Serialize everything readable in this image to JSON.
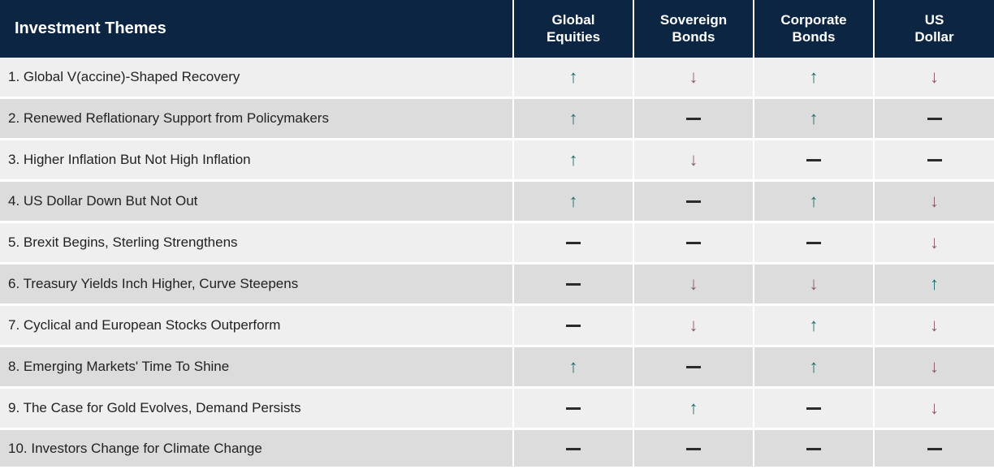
{
  "table": {
    "type": "table",
    "header_bg": "#0c2542",
    "header_text_color": "#ffffff",
    "row_bg_even": "#efefef",
    "row_bg_odd": "#dcdcdc",
    "cell_border_color": "#ffffff",
    "text_color": "#222222",
    "up_color": "#1d6e6e",
    "down_color": "#8a5a66",
    "flat_color": "#2b2b2b",
    "title_fontsize": 20,
    "header_fontsize": 17,
    "body_fontsize": 17,
    "arrow_fontsize": 22,
    "themes_col_width": 632,
    "asset_col_width": 148,
    "columns": [
      "Investment Themes",
      "Global Equities",
      "Sovereign Bonds",
      "Corporate Bonds",
      "US Dollar"
    ],
    "rows": [
      {
        "label": "1. Global V(accine)-Shaped Recovery",
        "values": [
          "up",
          "down",
          "up",
          "down"
        ]
      },
      {
        "label": "2. Renewed Reflationary Support from Policymakers",
        "values": [
          "up",
          "flat",
          "up",
          "flat"
        ]
      },
      {
        "label": "3. Higher Inflation But Not High Inflation",
        "values": [
          "up",
          "down",
          "flat",
          "flat"
        ]
      },
      {
        "label": "4. US Dollar Down But Not Out",
        "values": [
          "up",
          "flat",
          "up",
          "down"
        ]
      },
      {
        "label": "5. Brexit Begins, Sterling Strengthens",
        "values": [
          "flat",
          "flat",
          "flat",
          "down"
        ]
      },
      {
        "label": "6. Treasury Yields Inch Higher, Curve Steepens",
        "values": [
          "flat",
          "down",
          "down",
          "up"
        ]
      },
      {
        "label": "7. Cyclical and European Stocks Outperform",
        "values": [
          "flat",
          "down",
          "up",
          "down"
        ]
      },
      {
        "label": "8. Emerging  Markets'  Time To Shine",
        "values": [
          "up",
          "flat",
          "up",
          "down"
        ]
      },
      {
        "label": "9. The Case for Gold Evolves, Demand Persists",
        "values": [
          "flat",
          "up",
          "flat",
          "down"
        ]
      },
      {
        "label": "10. Investors Change for Climate Change",
        "values": [
          "flat",
          "flat",
          "flat",
          "flat"
        ]
      }
    ]
  }
}
